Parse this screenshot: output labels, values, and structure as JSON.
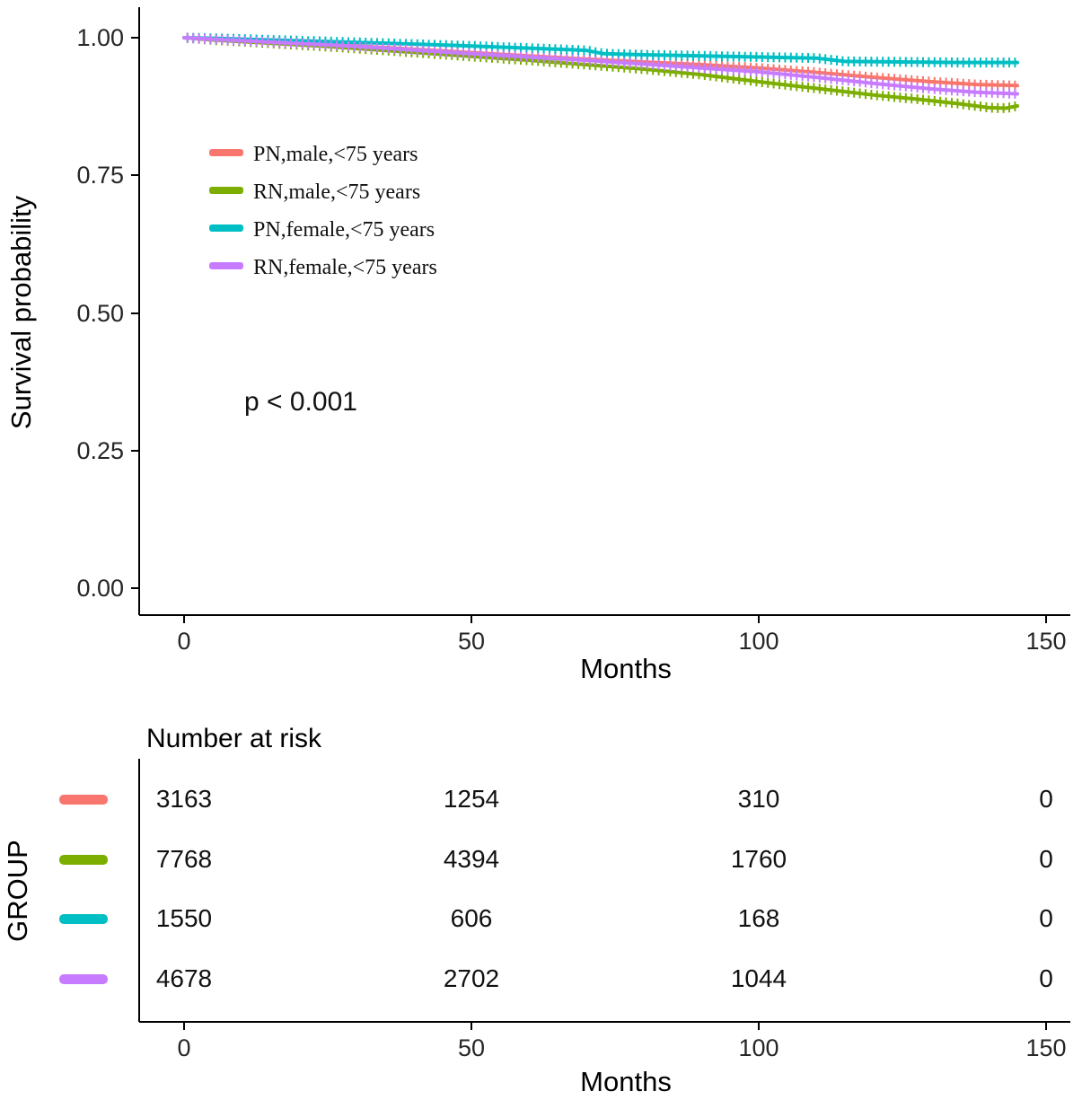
{
  "chart_data": {
    "type": "line",
    "chart_kind": "kaplan-meier-survival",
    "title": "",
    "xlabel": "Months",
    "ylabel": "Survival probability",
    "xlim": [
      0,
      150
    ],
    "ylim": [
      0.0,
      1.0
    ],
    "x_tick_labels": [
      "0",
      "50",
      "100",
      "150"
    ],
    "y_tick_labels": [
      "1.00",
      "0.75",
      "0.50",
      "0.25",
      "0.00"
    ],
    "pvalue_text": "p < 0.001",
    "legend_position": "inside-top-left",
    "series": [
      {
        "name": "PN,male,<75 years",
        "color": "#F8766D",
        "points": [
          [
            0,
            1.0
          ],
          [
            5,
            0.998
          ],
          [
            15,
            0.993
          ],
          [
            25,
            0.988
          ],
          [
            35,
            0.982
          ],
          [
            50,
            0.973
          ],
          [
            60,
            0.967
          ],
          [
            70,
            0.961
          ],
          [
            80,
            0.956
          ],
          [
            90,
            0.951
          ],
          [
            100,
            0.945
          ],
          [
            110,
            0.937
          ],
          [
            120,
            0.928
          ],
          [
            130,
            0.92
          ],
          [
            138,
            0.915
          ],
          [
            145,
            0.913
          ]
        ]
      },
      {
        "name": "RN,male,<75 years",
        "color": "#7CAE00",
        "points": [
          [
            0,
            1.0
          ],
          [
            5,
            0.996
          ],
          [
            15,
            0.99
          ],
          [
            25,
            0.984
          ],
          [
            35,
            0.977
          ],
          [
            50,
            0.966
          ],
          [
            60,
            0.959
          ],
          [
            70,
            0.951
          ],
          [
            80,
            0.943
          ],
          [
            90,
            0.933
          ],
          [
            100,
            0.92
          ],
          [
            110,
            0.908
          ],
          [
            120,
            0.896
          ],
          [
            128,
            0.888
          ],
          [
            135,
            0.88
          ],
          [
            140,
            0.873
          ],
          [
            143,
            0.872
          ],
          [
            145,
            0.876
          ]
        ]
      },
      {
        "name": "PN,female,<75 years",
        "color": "#00BFC4",
        "points": [
          [
            0,
            1.0
          ],
          [
            5,
            0.999
          ],
          [
            15,
            0.996
          ],
          [
            25,
            0.993
          ],
          [
            35,
            0.99
          ],
          [
            50,
            0.985
          ],
          [
            60,
            0.981
          ],
          [
            70,
            0.977
          ],
          [
            73,
            0.971
          ],
          [
            80,
            0.969
          ],
          [
            90,
            0.967
          ],
          [
            100,
            0.965
          ],
          [
            110,
            0.963
          ],
          [
            115,
            0.957
          ],
          [
            125,
            0.956
          ],
          [
            135,
            0.955
          ],
          [
            145,
            0.955
          ]
        ]
      },
      {
        "name": "RN,female,<75 years",
        "color": "#C77CFF",
        "points": [
          [
            0,
            1.0
          ],
          [
            5,
            0.997
          ],
          [
            15,
            0.992
          ],
          [
            25,
            0.987
          ],
          [
            35,
            0.981
          ],
          [
            50,
            0.971
          ],
          [
            60,
            0.965
          ],
          [
            70,
            0.959
          ],
          [
            80,
            0.952
          ],
          [
            90,
            0.945
          ],
          [
            100,
            0.938
          ],
          [
            110,
            0.928
          ],
          [
            120,
            0.917
          ],
          [
            130,
            0.907
          ],
          [
            138,
            0.901
          ],
          [
            145,
            0.898
          ]
        ]
      }
    ],
    "risk_table": {
      "title": "Number at risk",
      "group_axis_label": "GROUP",
      "xlabel": "Months",
      "x_tick_labels": [
        "0",
        "50",
        "100",
        "150"
      ],
      "rows": [
        {
          "group": "PN,male,<75 years",
          "counts": [
            "3163",
            "1254",
            "310",
            "0"
          ]
        },
        {
          "group": "RN,male,<75 years",
          "counts": [
            "7768",
            "4394",
            "1760",
            "0"
          ]
        },
        {
          "group": "PN,female,<75 years",
          "counts": [
            "1550",
            "606",
            "168",
            "0"
          ]
        },
        {
          "group": "RN,female,<75 years",
          "counts": [
            "4678",
            "2702",
            "1044",
            "0"
          ]
        }
      ]
    }
  }
}
